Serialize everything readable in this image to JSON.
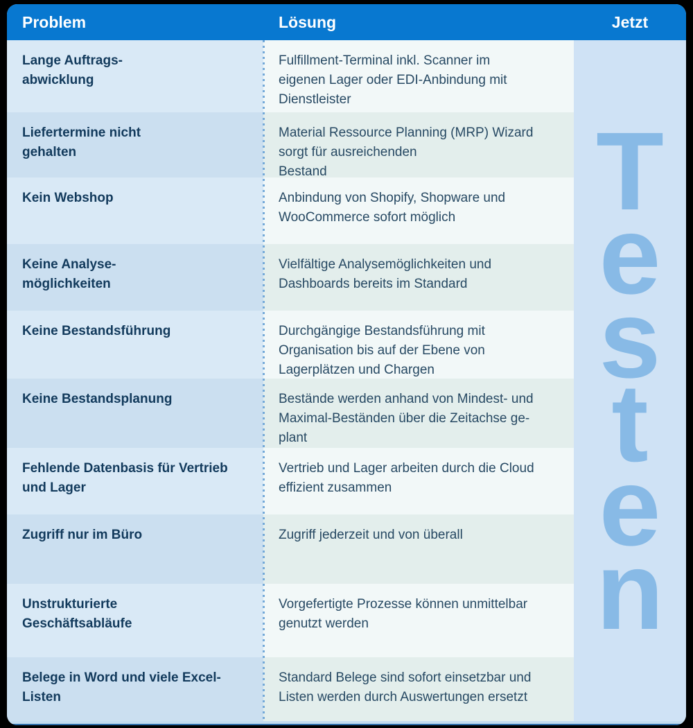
{
  "colors": {
    "header_blue": "#0878d0",
    "header_text": "#ffffff",
    "problem_text": "#123a5c",
    "solution_text": "#274963",
    "problem_row_light": "#d9e9f6",
    "problem_row_dark": "#cbdff0",
    "solution_row_light": "#f2f8f8",
    "solution_row_dark": "#e3eeec",
    "cta_panel": "#cfe2f5",
    "cta_text": "#88bae6",
    "dotted_divider": "#74a9d8",
    "outer_background": "#000000"
  },
  "header": {
    "problem": "Problem",
    "loesung": "Lösung",
    "jetzt": "Jetzt"
  },
  "cta": {
    "vertical_text": "Testen"
  },
  "rows": [
    {
      "problem": "Lange Auftrags-\nabwicklung",
      "solution": "Fulfillment-Terminal inkl. Scanner im\neigenen Lager oder EDI-Anbindung mit\nDienstleister"
    },
    {
      "problem": "Liefertermine nicht\ngehalten",
      "solution": "Material Ressource Planning (MRP) Wizard\nsorgt für ausreichenden\nBestand"
    },
    {
      "problem": "Kein Webshop",
      "solution": "Anbindung von Shopify, Shopware und\nWooCommerce sofort möglich"
    },
    {
      "problem": "Keine Analyse-\nmöglichkeiten",
      "solution": "Vielfältige Analysemöglichkeiten und\nDashboards bereits im Standard"
    },
    {
      "problem": "Keine Bestandsführung",
      "solution": "Durchgängige Bestandsführung mit\nOrganisation bis auf der Ebene von\nLagerplätzen und Chargen"
    },
    {
      "problem": "Keine Bestandsplanung",
      "solution": "Bestände werden anhand von Mindest- und\nMaximal-Beständen über die Zeitachse ge-\nplant"
    },
    {
      "problem": "Fehlende Datenbasis für Vertrieb\nund Lager",
      "solution": "Vertrieb und Lager arbeiten durch die Cloud\neffizient zusammen"
    },
    {
      "problem": "Zugriff nur im Büro",
      "solution": "Zugriff jederzeit und von überall"
    },
    {
      "problem": "Unstrukturierte\nGeschäftsabläufe",
      "solution": "Vorgefertigte Prozesse können unmittelbar\ngenutzt werden"
    },
    {
      "problem": "Belege in Word und viele Excel-\nListen",
      "solution": "Standard Belege sind sofort einsetzbar und\nListen werden durch Auswertungen ersetzt"
    }
  ]
}
